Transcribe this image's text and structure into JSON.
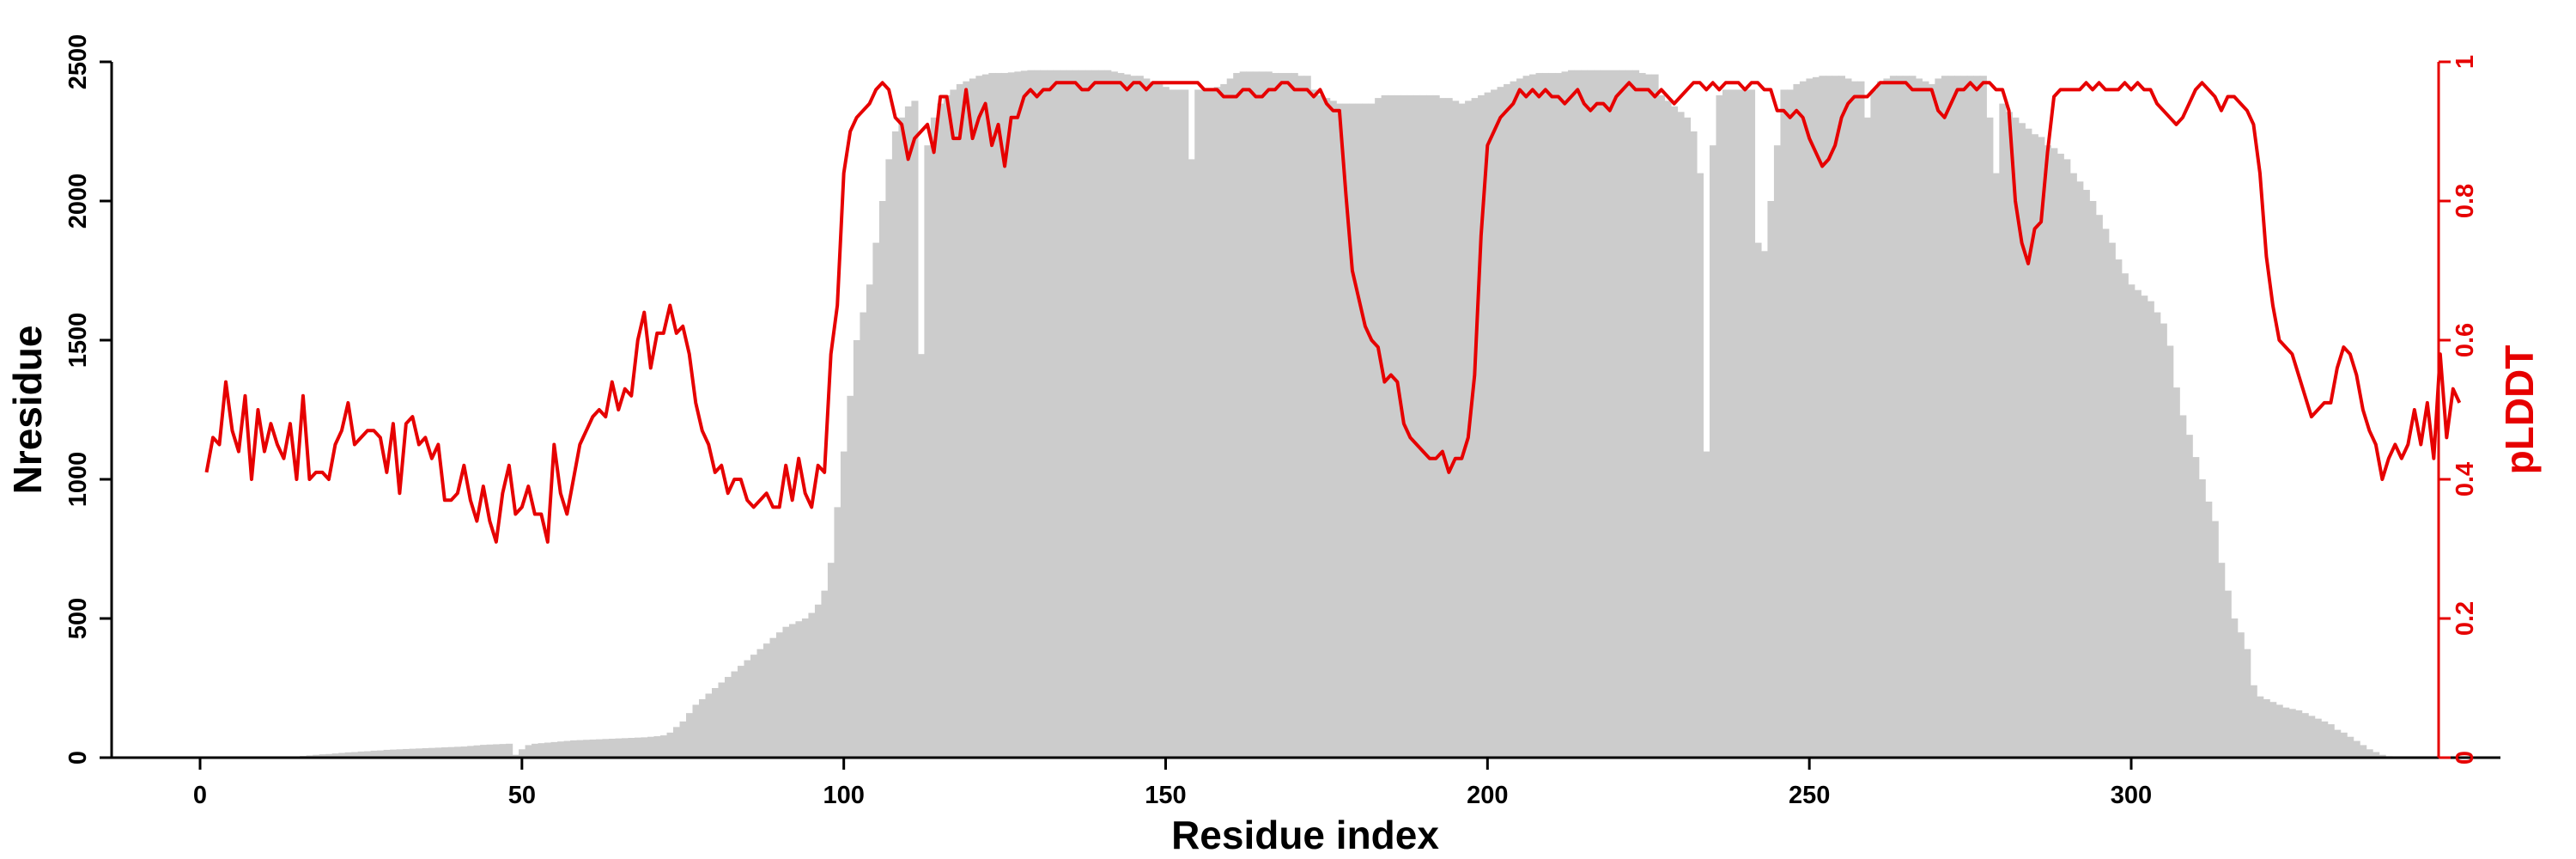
{
  "chart_data": {
    "type": "bar+line",
    "xlabel": "Residue index",
    "ylabel_left": "Nresidue",
    "ylabel_right": "pLDDT",
    "xlim": [
      -14,
      356
    ],
    "ylim_left": [
      0,
      2500
    ],
    "ylim_right": [
      0,
      1
    ],
    "x_ticks": [
      "0",
      "50",
      "100",
      "150",
      "200",
      "250",
      "300"
    ],
    "y_left_ticks": [
      "0",
      "500",
      "1000",
      "1500",
      "2000",
      "2500"
    ],
    "y_right_ticks": [
      "0",
      "0.2",
      "0.4",
      "0.6",
      "0.8",
      "1"
    ],
    "grid": false,
    "colors": {
      "bars": "#cccccc",
      "line": "#e60000",
      "axis_left": "#000000",
      "axis_right": "#e60000"
    },
    "series": [
      {
        "kind": "bar",
        "axis": "left",
        "note_x_start": 1,
        "values": [
          0,
          0,
          0,
          0,
          0,
          0,
          0,
          0,
          0,
          0,
          0,
          0,
          0,
          2,
          4,
          6,
          8,
          10,
          12,
          13,
          15,
          17,
          19,
          20,
          22,
          23,
          25,
          26,
          28,
          29,
          30,
          31,
          32,
          33,
          34,
          35,
          36,
          37,
          38,
          39,
          40,
          42,
          44,
          46,
          47,
          48,
          49,
          50,
          10,
          30,
          45,
          50,
          52,
          54,
          56,
          58,
          60,
          62,
          63,
          64,
          65,
          66,
          67,
          68,
          69,
          70,
          71,
          72,
          73,
          75,
          77,
          80,
          90,
          110,
          130,
          160,
          190,
          210,
          230,
          250,
          270,
          290,
          310,
          330,
          350,
          370,
          390,
          410,
          430,
          450,
          470,
          480,
          490,
          500,
          520,
          550,
          600,
          700,
          900,
          1100,
          1300,
          1500,
          1600,
          1700,
          1850,
          2000,
          2150,
          2250,
          2300,
          2340,
          2360,
          1450,
          2200,
          2300,
          2350,
          2380,
          2400,
          2420,
          2430,
          2440,
          2450,
          2455,
          2460,
          2460,
          2460,
          2462,
          2465,
          2468,
          2470,
          2470,
          2470,
          2470,
          2470,
          2470,
          2470,
          2470,
          2470,
          2470,
          2470,
          2470,
          2470,
          2465,
          2460,
          2455,
          2450,
          2450,
          2440,
          2430,
          2420,
          2410,
          2400,
          2400,
          2400,
          2150,
          2400,
          2400,
          2400,
          2410,
          2420,
          2440,
          2460,
          2465,
          2465,
          2465,
          2465,
          2465,
          2460,
          2460,
          2460,
          2460,
          2450,
          2450,
          2400,
          2380,
          2370,
          2360,
          2350,
          2350,
          2350,
          2350,
          2350,
          2350,
          2370,
          2380,
          2380,
          2380,
          2380,
          2380,
          2380,
          2380,
          2380,
          2380,
          2370,
          2370,
          2360,
          2350,
          2360,
          2370,
          2380,
          2390,
          2400,
          2410,
          2420,
          2430,
          2440,
          2450,
          2455,
          2460,
          2460,
          2460,
          2460,
          2465,
          2470,
          2470,
          2470,
          2470,
          2470,
          2470,
          2470,
          2470,
          2470,
          2470,
          2470,
          2460,
          2455,
          2455,
          2380,
          2360,
          2340,
          2320,
          2300,
          2250,
          2100,
          1100,
          2200,
          2380,
          2400,
          2400,
          2400,
          2400,
          2400,
          1850,
          1820,
          2000,
          2200,
          2400,
          2400,
          2420,
          2430,
          2440,
          2445,
          2450,
          2450,
          2450,
          2450,
          2440,
          2430,
          2430,
          2300,
          2400,
          2430,
          2440,
          2450,
          2450,
          2450,
          2450,
          2440,
          2430,
          2420,
          2440,
          2450,
          2450,
          2450,
          2450,
          2450,
          2450,
          2450,
          2300,
          2100,
          2350,
          2320,
          2300,
          2280,
          2260,
          2240,
          2230,
          2200,
          2190,
          2170,
          2150,
          2100,
          2070,
          2040,
          2000,
          1950,
          1900,
          1850,
          1790,
          1740,
          1700,
          1680,
          1660,
          1640,
          1600,
          1560,
          1480,
          1330,
          1230,
          1160,
          1080,
          1000,
          920,
          850,
          700,
          600,
          500,
          450,
          390,
          260,
          220,
          210,
          200,
          190,
          180,
          175,
          170,
          160,
          150,
          140,
          130,
          120,
          100,
          90,
          75,
          60,
          45,
          30,
          20,
          10,
          5,
          2
        ]
      },
      {
        "kind": "line",
        "axis": "right",
        "note_x_start": 1,
        "values": [
          0.41,
          0.46,
          0.45,
          0.54,
          0.47,
          0.44,
          0.52,
          0.4,
          0.5,
          0.44,
          0.48,
          0.45,
          0.43,
          0.48,
          0.4,
          0.52,
          0.4,
          0.41,
          0.41,
          0.4,
          0.45,
          0.47,
          0.51,
          0.45,
          0.46,
          0.47,
          0.47,
          0.46,
          0.41,
          0.48,
          0.38,
          0.48,
          0.49,
          0.45,
          0.46,
          0.43,
          0.45,
          0.37,
          0.37,
          0.38,
          0.42,
          0.37,
          0.34,
          0.39,
          0.34,
          0.31,
          0.38,
          0.42,
          0.35,
          0.36,
          0.39,
          0.35,
          0.35,
          0.31,
          0.45,
          0.38,
          0.35,
          0.4,
          0.45,
          0.47,
          0.49,
          0.5,
          0.49,
          0.54,
          0.5,
          0.53,
          0.52,
          0.6,
          0.64,
          0.56,
          0.61,
          0.61,
          0.65,
          0.61,
          0.62,
          0.58,
          0.51,
          0.47,
          0.45,
          0.41,
          0.42,
          0.38,
          0.4,
          0.4,
          0.37,
          0.36,
          0.37,
          0.38,
          0.36,
          0.36,
          0.42,
          0.37,
          0.43,
          0.38,
          0.36,
          0.42,
          0.41,
          0.58,
          0.65,
          0.84,
          0.9,
          0.92,
          0.93,
          0.94,
          0.96,
          0.97,
          0.96,
          0.92,
          0.91,
          0.86,
          0.89,
          0.9,
          0.91,
          0.87,
          0.95,
          0.95,
          0.89,
          0.89,
          0.96,
          0.89,
          0.92,
          0.94,
          0.88,
          0.91,
          0.85,
          0.92,
          0.92,
          0.95,
          0.96,
          0.95,
          0.96,
          0.96,
          0.97,
          0.97,
          0.97,
          0.97,
          0.96,
          0.96,
          0.97,
          0.97,
          0.97,
          0.97,
          0.97,
          0.96,
          0.97,
          0.97,
          0.96,
          0.97,
          0.97,
          0.97,
          0.97,
          0.97,
          0.97,
          0.97,
          0.97,
          0.96,
          0.96,
          0.96,
          0.95,
          0.95,
          0.95,
          0.96,
          0.96,
          0.95,
          0.95,
          0.96,
          0.96,
          0.97,
          0.97,
          0.96,
          0.96,
          0.96,
          0.95,
          0.96,
          0.94,
          0.93,
          0.93,
          0.81,
          0.7,
          0.66,
          0.62,
          0.6,
          0.59,
          0.54,
          0.55,
          0.54,
          0.48,
          0.46,
          0.45,
          0.44,
          0.43,
          0.43,
          0.44,
          0.41,
          0.43,
          0.43,
          0.46,
          0.55,
          0.75,
          0.88,
          0.9,
          0.92,
          0.93,
          0.94,
          0.96,
          0.95,
          0.96,
          0.95,
          0.96,
          0.95,
          0.95,
          0.94,
          0.95,
          0.96,
          0.94,
          0.93,
          0.94,
          0.94,
          0.93,
          0.95,
          0.96,
          0.97,
          0.96,
          0.96,
          0.96,
          0.95,
          0.96,
          0.95,
          0.94,
          0.95,
          0.96,
          0.97,
          0.97,
          0.96,
          0.97,
          0.96,
          0.97,
          0.97,
          0.97,
          0.96,
          0.97,
          0.97,
          0.96,
          0.96,
          0.93,
          0.93,
          0.92,
          0.93,
          0.92,
          0.89,
          0.87,
          0.85,
          0.86,
          0.88,
          0.92,
          0.94,
          0.95,
          0.95,
          0.95,
          0.96,
          0.97,
          0.97,
          0.97,
          0.97,
          0.97,
          0.96,
          0.96,
          0.96,
          0.96,
          0.93,
          0.92,
          0.94,
          0.96,
          0.96,
          0.97,
          0.96,
          0.97,
          0.97,
          0.96,
          0.96,
          0.93,
          0.8,
          0.74,
          0.71,
          0.76,
          0.77,
          0.87,
          0.95,
          0.96,
          0.96,
          0.96,
          0.96,
          0.97,
          0.96,
          0.97,
          0.96,
          0.96,
          0.96,
          0.97,
          0.96,
          0.97,
          0.96,
          0.96,
          0.94,
          0.93,
          0.92,
          0.91,
          0.92,
          0.94,
          0.96,
          0.97,
          0.96,
          0.95,
          0.93,
          0.95,
          0.95,
          0.94,
          0.93,
          0.91,
          0.84,
          0.72,
          0.65,
          0.6,
          0.59,
          0.58,
          0.55,
          0.52,
          0.49,
          0.5,
          0.51,
          0.51,
          0.56,
          0.59,
          0.58,
          0.55,
          0.5,
          0.47,
          0.45,
          0.4,
          0.43,
          0.45,
          0.43,
          0.45,
          0.5,
          0.45,
          0.51,
          0.43,
          0.58,
          0.46,
          0.53,
          0.51
        ]
      }
    ]
  }
}
